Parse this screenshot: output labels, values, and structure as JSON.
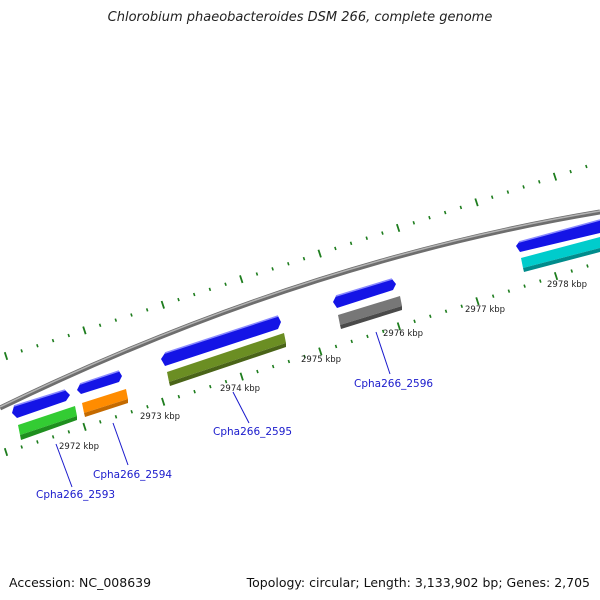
{
  "title": "Chlorobium phaeobacteroides DSM 266, complete genome",
  "footer": {
    "accession": "Accession: NC_008639",
    "summary": "Topology: circular; Length: 3,133,902 bp; Genes: 2,705"
  },
  "colors": {
    "backbone": "#8a8a8a",
    "ticks": "#1e7d1e",
    "cds_strand": "#1414e6",
    "label": "#1a1acc",
    "gene_2593": "#33cc33",
    "gene_2594": "#ff8c00",
    "gene_2595": "#6b8e23",
    "gene_2596": "#666666",
    "gene_next": "#00cccc"
  },
  "tick_labels": [
    "2972 kbp",
    "2973 kbp",
    "2974 kbp",
    "2975 kbp",
    "2976 kbp",
    "2977 kbp",
    "2978 kbp"
  ],
  "gene_labels": [
    "Cpha266_2593",
    "Cpha266_2594",
    "Cpha266_2595",
    "Cpha266_2596"
  ]
}
